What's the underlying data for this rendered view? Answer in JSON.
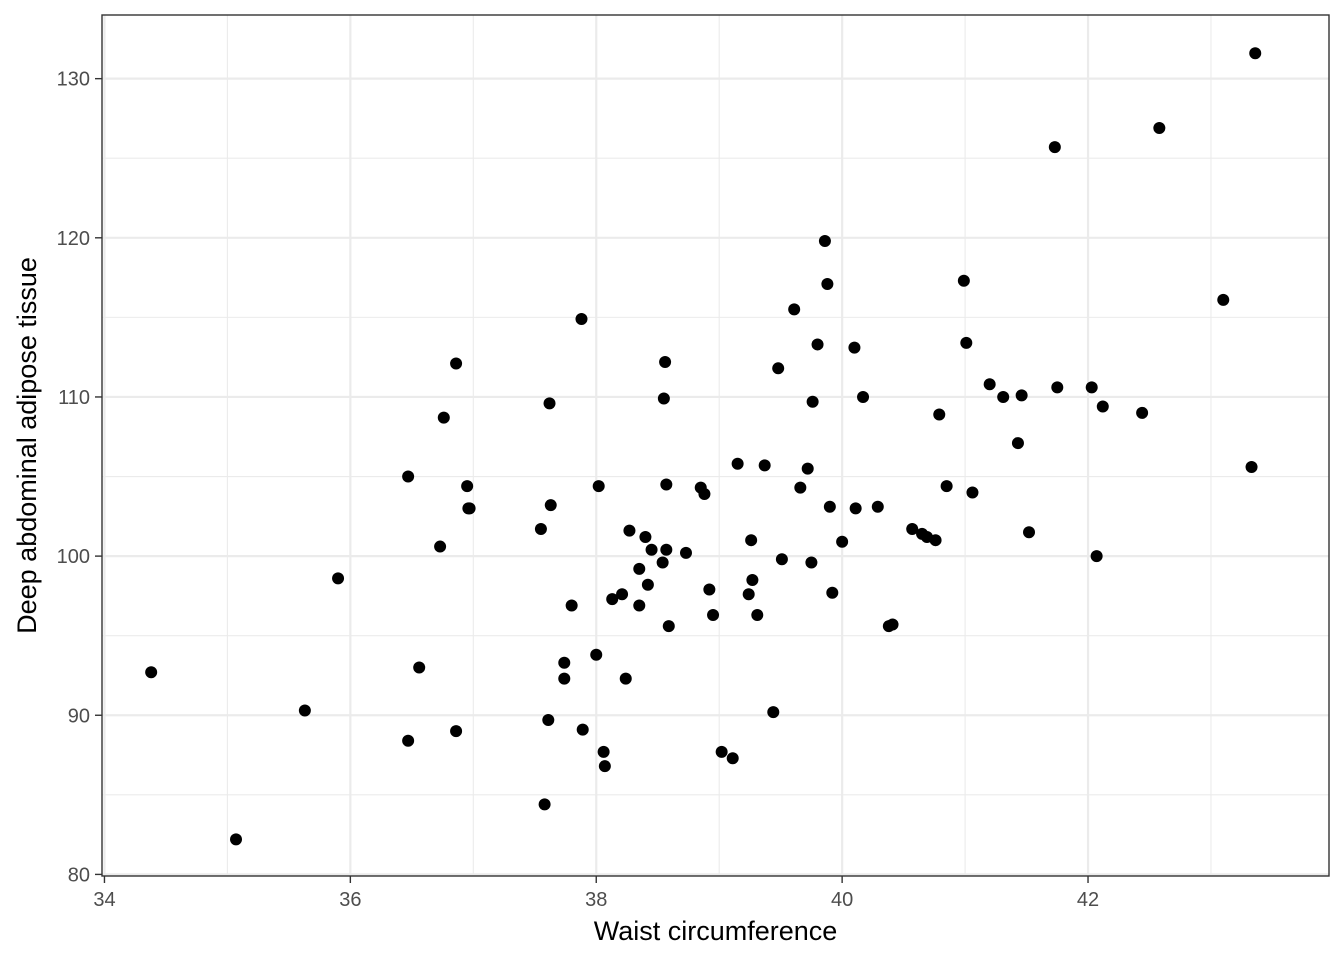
{
  "chart_data": {
    "type": "scatter",
    "title": "",
    "xlabel": "Waist circumference",
    "ylabel": "Deep abdominal adipose tissue",
    "xlim": [
      33.98,
      43.96
    ],
    "ylim": [
      79.9,
      134.0
    ],
    "x_ticks": [
      34,
      36,
      38,
      40,
      42
    ],
    "y_ticks": [
      80,
      90,
      100,
      110,
      120,
      130
    ],
    "x_tick_labels": [
      "34",
      "36",
      "38",
      "40",
      "42"
    ],
    "y_tick_labels": [
      "80",
      "90",
      "100",
      "110",
      "120",
      "130"
    ],
    "grid": true,
    "theme": "bw",
    "point_color": "#000000",
    "points": [
      {
        "x": 34.38,
        "y": 92.7
      },
      {
        "x": 35.07,
        "y": 82.2
      },
      {
        "x": 35.63,
        "y": 90.3
      },
      {
        "x": 35.9,
        "y": 98.6
      },
      {
        "x": 36.47,
        "y": 105.0
      },
      {
        "x": 36.47,
        "y": 88.4
      },
      {
        "x": 36.56,
        "y": 93.0
      },
      {
        "x": 36.73,
        "y": 100.6
      },
      {
        "x": 36.76,
        "y": 108.7
      },
      {
        "x": 36.86,
        "y": 112.1
      },
      {
        "x": 36.86,
        "y": 89.0
      },
      {
        "x": 36.95,
        "y": 104.4
      },
      {
        "x": 36.96,
        "y": 103.0
      },
      {
        "x": 36.97,
        "y": 103.0
      },
      {
        "x": 37.55,
        "y": 101.7
      },
      {
        "x": 37.58,
        "y": 84.4
      },
      {
        "x": 37.61,
        "y": 89.7
      },
      {
        "x": 37.62,
        "y": 109.6
      },
      {
        "x": 37.63,
        "y": 103.2
      },
      {
        "x": 37.74,
        "y": 93.3
      },
      {
        "x": 37.74,
        "y": 92.3
      },
      {
        "x": 37.8,
        "y": 96.9
      },
      {
        "x": 37.88,
        "y": 114.9
      },
      {
        "x": 37.89,
        "y": 89.1
      },
      {
        "x": 38.0,
        "y": 93.8
      },
      {
        "x": 38.02,
        "y": 104.4
      },
      {
        "x": 38.06,
        "y": 87.7
      },
      {
        "x": 38.07,
        "y": 86.8
      },
      {
        "x": 38.13,
        "y": 97.3
      },
      {
        "x": 38.21,
        "y": 97.6
      },
      {
        "x": 38.24,
        "y": 92.3
      },
      {
        "x": 38.27,
        "y": 101.6
      },
      {
        "x": 38.35,
        "y": 99.2
      },
      {
        "x": 38.35,
        "y": 96.9
      },
      {
        "x": 38.4,
        "y": 101.2
      },
      {
        "x": 38.42,
        "y": 98.2
      },
      {
        "x": 38.45,
        "y": 100.4
      },
      {
        "x": 38.54,
        "y": 99.6
      },
      {
        "x": 38.55,
        "y": 109.9
      },
      {
        "x": 38.56,
        "y": 112.2
      },
      {
        "x": 38.57,
        "y": 100.4
      },
      {
        "x": 38.57,
        "y": 104.5
      },
      {
        "x": 38.59,
        "y": 95.6
      },
      {
        "x": 38.73,
        "y": 100.2
      },
      {
        "x": 38.85,
        "y": 104.3
      },
      {
        "x": 38.88,
        "y": 103.9
      },
      {
        "x": 38.92,
        "y": 97.9
      },
      {
        "x": 38.95,
        "y": 96.3
      },
      {
        "x": 39.02,
        "y": 87.7
      },
      {
        "x": 39.11,
        "y": 87.3
      },
      {
        "x": 39.15,
        "y": 105.8
      },
      {
        "x": 39.24,
        "y": 97.6
      },
      {
        "x": 39.26,
        "y": 101.0
      },
      {
        "x": 39.27,
        "y": 98.5
      },
      {
        "x": 39.31,
        "y": 96.3
      },
      {
        "x": 39.37,
        "y": 105.7
      },
      {
        "x": 39.44,
        "y": 90.2
      },
      {
        "x": 39.48,
        "y": 111.8
      },
      {
        "x": 39.51,
        "y": 99.8
      },
      {
        "x": 39.61,
        "y": 115.5
      },
      {
        "x": 39.66,
        "y": 104.3
      },
      {
        "x": 39.72,
        "y": 105.5
      },
      {
        "x": 39.75,
        "y": 99.6
      },
      {
        "x": 39.76,
        "y": 109.7
      },
      {
        "x": 39.8,
        "y": 113.3
      },
      {
        "x": 39.86,
        "y": 119.8
      },
      {
        "x": 39.88,
        "y": 117.1
      },
      {
        "x": 39.9,
        "y": 103.1
      },
      {
        "x": 39.92,
        "y": 97.7
      },
      {
        "x": 40.0,
        "y": 100.9
      },
      {
        "x": 40.1,
        "y": 113.1
      },
      {
        "x": 40.11,
        "y": 103.0
      },
      {
        "x": 40.17,
        "y": 110.0
      },
      {
        "x": 40.29,
        "y": 103.1
      },
      {
        "x": 40.38,
        "y": 95.6
      },
      {
        "x": 40.41,
        "y": 95.7
      },
      {
        "x": 40.57,
        "y": 101.7
      },
      {
        "x": 40.65,
        "y": 101.4
      },
      {
        "x": 40.69,
        "y": 101.2
      },
      {
        "x": 40.76,
        "y": 101.0
      },
      {
        "x": 40.79,
        "y": 108.9
      },
      {
        "x": 40.85,
        "y": 104.4
      },
      {
        "x": 40.99,
        "y": 117.3
      },
      {
        "x": 41.01,
        "y": 113.4
      },
      {
        "x": 41.06,
        "y": 104.0
      },
      {
        "x": 41.2,
        "y": 110.8
      },
      {
        "x": 41.31,
        "y": 110.0
      },
      {
        "x": 41.43,
        "y": 107.1
      },
      {
        "x": 41.46,
        "y": 110.1
      },
      {
        "x": 41.52,
        "y": 101.5
      },
      {
        "x": 41.73,
        "y": 125.7
      },
      {
        "x": 41.75,
        "y": 110.6
      },
      {
        "x": 42.03,
        "y": 110.6
      },
      {
        "x": 42.07,
        "y": 100.0
      },
      {
        "x": 42.12,
        "y": 109.4
      },
      {
        "x": 42.44,
        "y": 109.0
      },
      {
        "x": 42.58,
        "y": 126.9
      },
      {
        "x": 43.1,
        "y": 116.1
      },
      {
        "x": 43.33,
        "y": 105.6
      },
      {
        "x": 43.36,
        "y": 131.6
      }
    ]
  }
}
